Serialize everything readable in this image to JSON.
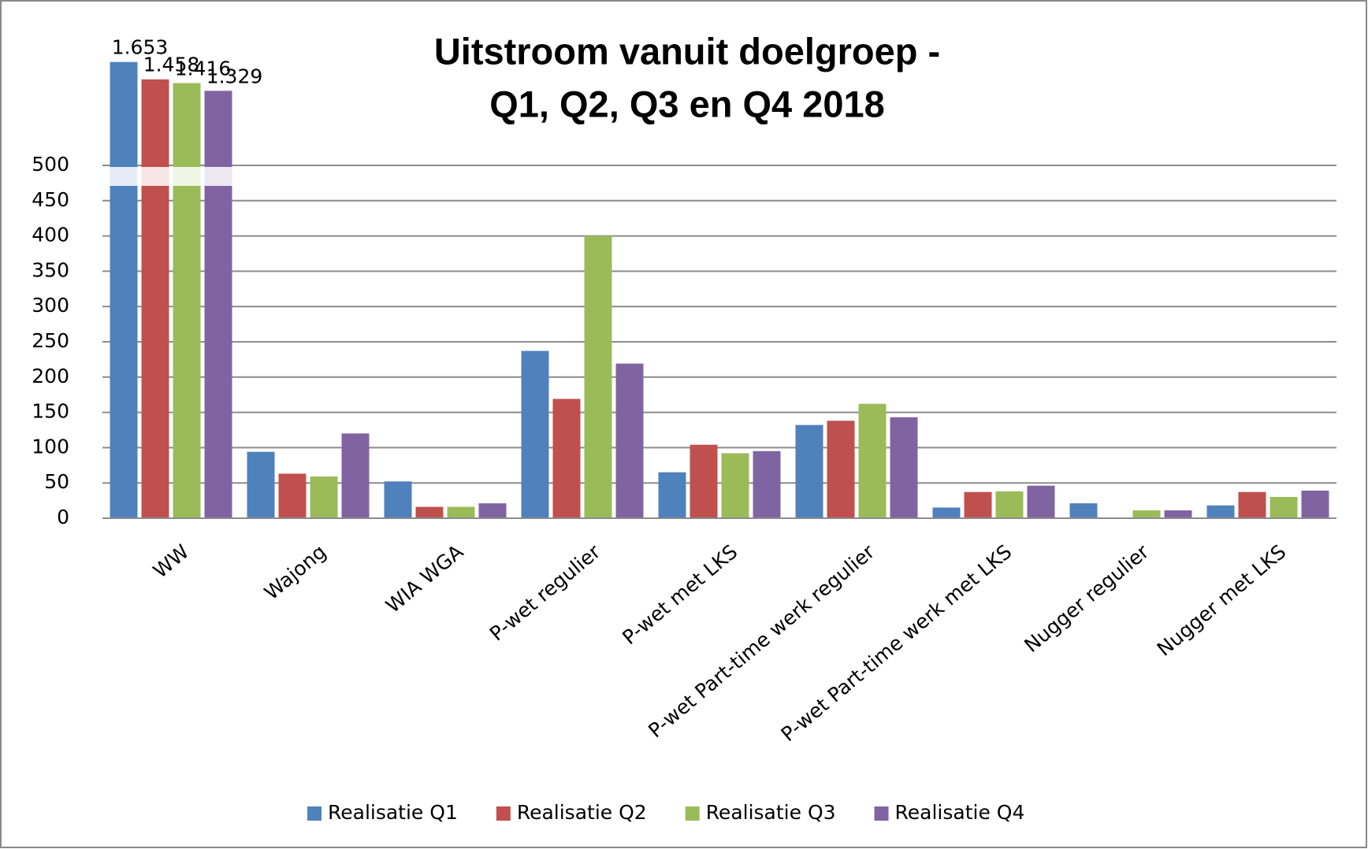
{
  "chart_data": {
    "type": "bar",
    "title": [
      "Uitstroom vanuit doelgroep -",
      "Q1, Q2, Q3 en Q4 2018"
    ],
    "categories": [
      "WW",
      "Wajong",
      "WIA WGA",
      "P-wet regulier",
      "P-wet met LKS",
      "P-wet Part-time werk regulier",
      "P-wet Part-time werk met LKS",
      "Nugger regulier",
      "Nugger met LKS"
    ],
    "series": [
      {
        "name": "Realisatie Q1",
        "color": "#4f81bd",
        "values": [
          1653,
          93,
          51,
          236,
          64,
          131,
          14,
          20,
          17
        ],
        "value_labels": [
          "1.653",
          null,
          null,
          null,
          null,
          null,
          null,
          null,
          null
        ]
      },
      {
        "name": "Realisatie Q2",
        "color": "#c0504d",
        "values": [
          1458,
          62,
          15,
          168,
          103,
          137,
          36,
          0,
          36
        ],
        "value_labels": [
          "1.458",
          null,
          null,
          null,
          null,
          null,
          null,
          null,
          null
        ]
      },
      {
        "name": "Realisatie Q3",
        "color": "#9bbb59",
        "values": [
          1416,
          58,
          15,
          399,
          91,
          161,
          37,
          10,
          29
        ],
        "value_labels": [
          "1.416",
          null,
          null,
          null,
          null,
          null,
          null,
          null,
          null
        ]
      },
      {
        "name": "Realisatie Q4",
        "color": "#8064a2",
        "values": [
          1329,
          119,
          20,
          218,
          94,
          142,
          45,
          10,
          38
        ],
        "value_labels": [
          "1.329",
          null,
          null,
          null,
          null,
          null,
          null,
          null,
          null
        ]
      }
    ],
    "ylim": [
      0,
      500
    ],
    "yticks": [
      0,
      50,
      100,
      150,
      200,
      250,
      300,
      350,
      400,
      450,
      500
    ],
    "grid": true,
    "legend": "bottom"
  }
}
